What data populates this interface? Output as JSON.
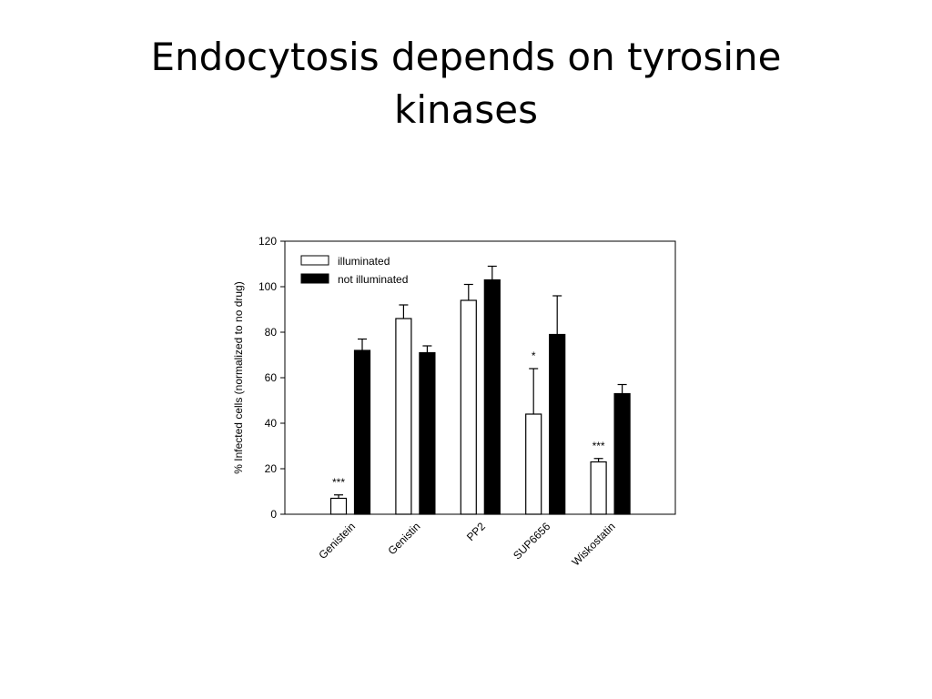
{
  "title": "Endocytosis depends on tyrosine kinases",
  "chart_data": {
    "type": "bar",
    "categories": [
      "Genistein",
      "Genistin",
      "PP2",
      "SUP6656",
      "Wiskostatin"
    ],
    "series": [
      {
        "name": "illuminated",
        "color": "#ffffff",
        "edgecolor": "#000000",
        "values": [
          7,
          86,
          94,
          44,
          23
        ],
        "errors": [
          1.5,
          6,
          7,
          20,
          1.5
        ]
      },
      {
        "name": "not illuminated",
        "color": "#000000",
        "edgecolor": "#000000",
        "values": [
          72,
          71,
          103,
          79,
          53
        ],
        "errors": [
          5,
          3,
          6,
          17,
          4
        ]
      }
    ],
    "significance": [
      "***",
      null,
      null,
      "*",
      "***"
    ],
    "ylabel": "% Infected cells (normalized to no drug)",
    "ylim": [
      0,
      120
    ],
    "yticks": [
      0,
      20,
      40,
      60,
      80,
      100,
      120
    ],
    "legend": "upper left"
  }
}
